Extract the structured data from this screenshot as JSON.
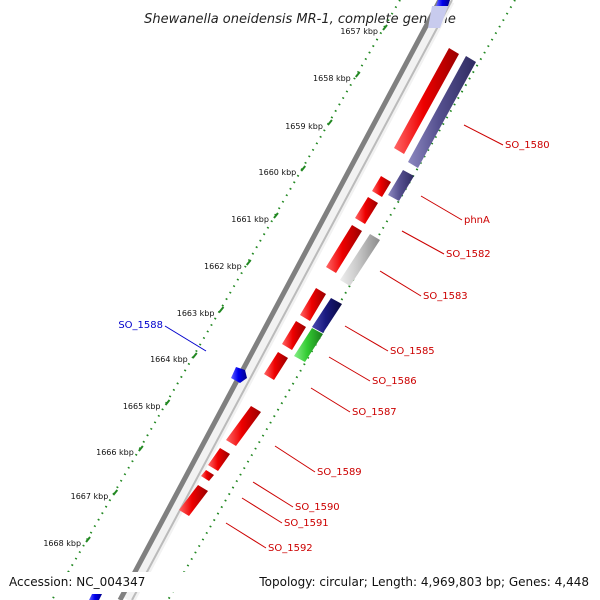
{
  "title": "Shewanella oneidensis MR-1, complete genome",
  "footer": {
    "accession": "Accession: NC_004347",
    "topology": "Topology: circular; Length: 4,969,803 bp; Genes: 4,448"
  },
  "colors": {
    "forward_gene": "#ee0000",
    "reverse_gene": "#55508f",
    "reverse_gene_dark": "#1a1a80",
    "rna_gene": "#33cc33",
    "other_gene": "#c8c8c8",
    "blue_gene": "#0000ee",
    "tick_green": "#228822",
    "backbone": "#888888",
    "label_red": "#cc0000",
    "label_blue": "#0000cc"
  },
  "kbp_ticks": [
    {
      "label": "1657 kbp",
      "kbp": 1657
    },
    {
      "label": "1658 kbp",
      "kbp": 1658
    },
    {
      "label": "1659 kbp",
      "kbp": 1659
    },
    {
      "label": "1660 kbp",
      "kbp": 1660
    },
    {
      "label": "1661 kbp",
      "kbp": 1661
    },
    {
      "label": "1662 kbp",
      "kbp": 1662
    },
    {
      "label": "1663 kbp",
      "kbp": 1663
    },
    {
      "label": "1664 kbp",
      "kbp": 1664
    },
    {
      "label": "1665 kbp",
      "kbp": 1665
    },
    {
      "label": "1666 kbp",
      "kbp": 1666
    },
    {
      "label": "1667 kbp",
      "kbp": 1667
    },
    {
      "label": "1668 kbp",
      "kbp": 1668
    }
  ],
  "gene_labels": [
    {
      "name": "SO_1580",
      "side": "right",
      "color": "label_red"
    },
    {
      "name": "phnA",
      "side": "right",
      "color": "label_red"
    },
    {
      "name": "SO_1582",
      "side": "right",
      "color": "label_red"
    },
    {
      "name": "SO_1583",
      "side": "right",
      "color": "label_red"
    },
    {
      "name": "SO_1585",
      "side": "right",
      "color": "label_red"
    },
    {
      "name": "SO_1586",
      "side": "right",
      "color": "label_red"
    },
    {
      "name": "SO_1587",
      "side": "right",
      "color": "label_red"
    },
    {
      "name": "SO_1588",
      "side": "left",
      "color": "label_blue"
    },
    {
      "name": "SO_1589",
      "side": "right",
      "color": "label_red"
    },
    {
      "name": "SO_1590",
      "side": "right",
      "color": "label_red"
    },
    {
      "name": "SO_1591",
      "side": "right",
      "color": "label_red"
    },
    {
      "name": "SO_1592",
      "side": "right",
      "color": "label_red"
    }
  ]
}
